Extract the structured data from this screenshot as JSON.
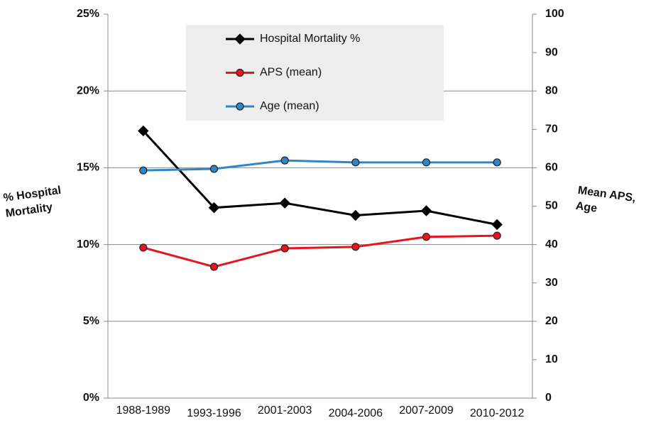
{
  "chart_data": {
    "type": "line",
    "categories": [
      "1988-1989",
      "1993-1996",
      "2001-2003",
      "2004-2006",
      "2007-2009",
      "2010-2012"
    ],
    "series": [
      {
        "name": "Hospital Mortality %",
        "color": "#000000",
        "marker": "diamond",
        "values": [
          17.4,
          12.4,
          12.7,
          11.9,
          12.2,
          11.3
        ]
      },
      {
        "name": "APS (mean)",
        "color": "#e8141b",
        "marker": "circle",
        "axis": "y2",
        "values": [
          39.2,
          34.2,
          39.0,
          39.4,
          42.0,
          42.3
        ]
      },
      {
        "name": "Age (mean)",
        "color": "#2e86c8",
        "marker": "circle",
        "axis": "y2",
        "values": [
          59.3,
          59.7,
          61.9,
          61.4,
          61.4,
          61.4
        ]
      }
    ],
    "ylabel": "% Hospital Mortality",
    "y2label": "Mean APS, Age",
    "ylim": [
      0,
      25
    ],
    "yticks": [
      {
        "value": 0,
        "label": "0%"
      },
      {
        "value": 5,
        "label": "5%"
      },
      {
        "value": 10,
        "label": "10%"
      },
      {
        "value": 15,
        "label": "15%"
      },
      {
        "value": 20,
        "label": "20%"
      },
      {
        "value": 25,
        "label": "25%"
      }
    ],
    "y2lim": [
      0,
      100
    ],
    "y2ticks": [
      0,
      10,
      20,
      30,
      40,
      50,
      60,
      70,
      80,
      90,
      100
    ],
    "grid": true,
    "legend": "top"
  }
}
